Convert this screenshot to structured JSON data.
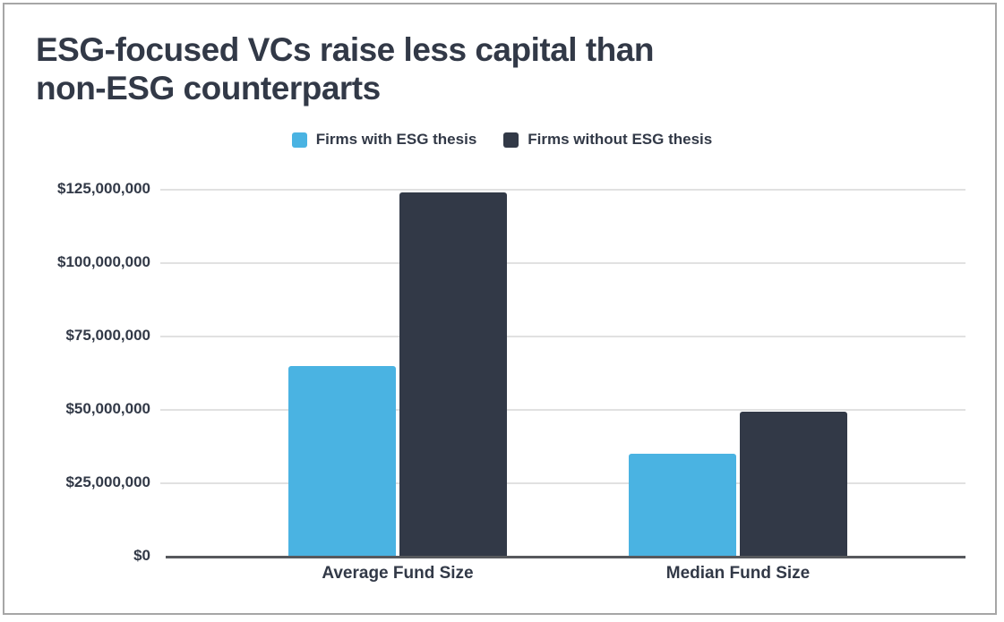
{
  "page": {
    "background_color": "#ffffff",
    "frame_border_color": "#a6a6a6",
    "text_color": "#323947",
    "gridline_color": "#e1e1e1",
    "axis_line_color": "#57595d"
  },
  "chart_data": {
    "type": "bar",
    "title": "ESG-focused VCs raise less capital than non-ESG counterparts",
    "title_lines": [
      "ESG-focused VCs raise less capital than",
      "non-ESG counterparts"
    ],
    "categories": [
      "Average Fund Size",
      "Median Fund Size"
    ],
    "series": [
      {
        "name": "Firms with ESG thesis",
        "color": "#4ab3e2",
        "values": [
          65000000,
          35000000
        ]
      },
      {
        "name": "Firms without ESG thesis",
        "color": "#323947",
        "values": [
          124000000,
          49500000
        ]
      }
    ],
    "xlabel": "",
    "ylabel": "",
    "ylim": [
      0,
      125000000
    ],
    "ytick_interval": 25000000,
    "yticks": [
      0,
      25000000,
      50000000,
      75000000,
      100000000,
      125000000
    ],
    "ytick_labels": [
      "$0",
      "$25,000,000",
      "$50,000,000",
      "$75,000,000",
      "$100,000,000",
      "$125,000,000"
    ],
    "grid": true,
    "legend_position": "top-center"
  }
}
